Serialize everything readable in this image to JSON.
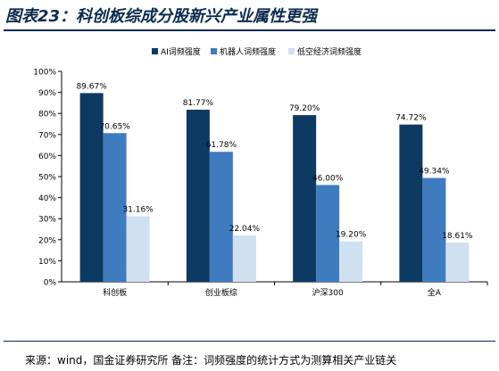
{
  "figure_title": "图表23：科创板综成分股新兴产业属性更强",
  "source_note": "来源：wind，国金证券研究所 备注：词频强度的统计方式为测算相关产业链关",
  "colors": {
    "ai": "#0d3a63",
    "robot": "#3f7bbf",
    "lowalt": "#cfe0f1",
    "rule": "#0b2a4e"
  },
  "chart_data": {
    "type": "bar",
    "title": "",
    "xlabel": "",
    "ylabel": "",
    "categories": [
      "科创板",
      "创业板综",
      "沪深300",
      "全A"
    ],
    "series": [
      {
        "name": "AI词频强度",
        "values": [
          89.67,
          81.77,
          79.2,
          74.72
        ],
        "labels": [
          "89.67%",
          "81.77%",
          "79.20%",
          "74.72%"
        ]
      },
      {
        "name": "机器人词频强度",
        "values": [
          70.65,
          61.78,
          46.0,
          49.34
        ],
        "labels": [
          "70.65%",
          "61.78%",
          "46.00%",
          "49.34%"
        ]
      },
      {
        "name": "低空经济词频强度",
        "values": [
          31.16,
          22.04,
          19.2,
          18.61
        ],
        "labels": [
          "31.16%",
          "22.04%",
          "19.20%",
          "18.61%"
        ]
      }
    ],
    "ylim": [
      0,
      100
    ],
    "yticks": [
      0,
      10,
      20,
      30,
      40,
      50,
      60,
      70,
      80,
      90,
      100
    ],
    "ytick_labels": [
      "0%",
      "10%",
      "20%",
      "30%",
      "40%",
      "50%",
      "60%",
      "70%",
      "80%",
      "90%",
      "100%"
    ],
    "grid": false,
    "legend_position": "top"
  }
}
